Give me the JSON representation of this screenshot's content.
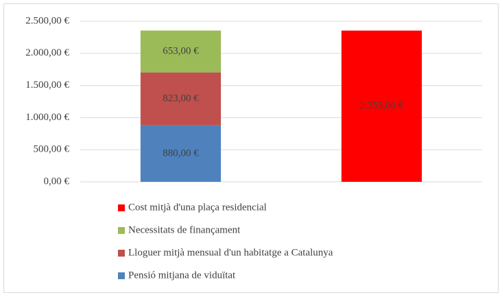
{
  "chart_data": {
    "type": "stacked-bar",
    "categories": [
      null,
      null
    ],
    "series": [
      {
        "name": "Pensió mitjana de viduïtat",
        "color": "#4f81bd",
        "values": [
          880,
          null
        ],
        "value_labels": [
          "880,00 €",
          null
        ]
      },
      {
        "name": "Lloguer mitjà mensual d'un habitatge a Catalunya",
        "color": "#c0504d",
        "values": [
          823,
          null
        ],
        "value_labels": [
          "823,00 €",
          null
        ]
      },
      {
        "name": "Necessitats de finançament",
        "color": "#9bbb59",
        "values": [
          653,
          null
        ],
        "value_labels": [
          "653,00 €",
          null
        ]
      },
      {
        "name": "Cost mitjà d'una plaça residencial",
        "color": "#ff0000",
        "values": [
          null,
          2355
        ],
        "value_labels": [
          null,
          "2.355,00 €"
        ]
      }
    ],
    "ylim": [
      0,
      2500
    ],
    "yticks": [
      {
        "value": 0,
        "label": "0,00 €"
      },
      {
        "value": 500,
        "label": "500,00 €"
      },
      {
        "value": 1000,
        "label": "1.000,00 €"
      },
      {
        "value": 1500,
        "label": "1.500,00 €"
      },
      {
        "value": 2000,
        "label": "2.000,00 €"
      },
      {
        "value": 2500,
        "label": "2.500,00 €"
      }
    ],
    "grid": true
  }
}
